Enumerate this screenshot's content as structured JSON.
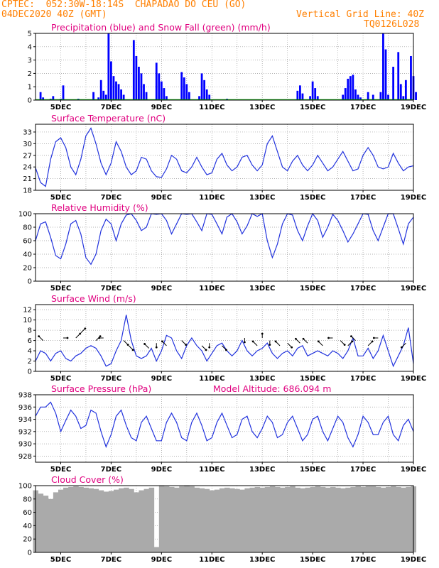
{
  "header": {
    "station": "CPTEC:  052:30W-18:14S  CHAPADAO DO CEU (GO)",
    "date": "04DEC2020 40Z (GMT)",
    "grid_note": "Vertical Grid Line: 40Z",
    "code": "TQ0126L028"
  },
  "colors": {
    "header": "#ff7f00",
    "title": "#e0007f",
    "precip": "#0000ff",
    "snow": "#00aa00",
    "line": "#2233dd",
    "cloud": "#aaaaaa",
    "grid": "#999999"
  },
  "x_day_labels": [
    "5DEC",
    "7DEC",
    "9DEC",
    "11DEC",
    "13DEC",
    "15DEC",
    "17DEC",
    "19DEC"
  ],
  "chart_data": [
    {
      "id": "precip",
      "type": "bar",
      "title": "Precipitation (blue) and Snow Fall (green) (mm/h)",
      "ylim": [
        0,
        5
      ],
      "yticks": [
        0,
        1,
        2,
        3,
        4,
        5
      ],
      "series": [
        {
          "name": "Precipitation",
          "color": "#0000ff",
          "points": [
            [
              4.2,
              0.6
            ],
            [
              4.3,
              0.2
            ],
            [
              4.6,
              0.1
            ],
            [
              4.7,
              0.3
            ],
            [
              5.0,
              0.1
            ],
            [
              5.1,
              1.1
            ],
            [
              5.7,
              0.1
            ],
            [
              6.3,
              0.6
            ],
            [
              6.5,
              0.2
            ],
            [
              6.6,
              1.5
            ],
            [
              6.7,
              0.7
            ],
            [
              6.8,
              0.4
            ],
            [
              6.9,
              5.0
            ],
            [
              7.0,
              2.9
            ],
            [
              7.1,
              1.8
            ],
            [
              7.2,
              1.4
            ],
            [
              7.3,
              1.2
            ],
            [
              7.4,
              0.8
            ],
            [
              7.5,
              0.4
            ],
            [
              7.9,
              4.5
            ],
            [
              8.0,
              3.3
            ],
            [
              8.1,
              2.5
            ],
            [
              8.2,
              2.0
            ],
            [
              8.3,
              1.2
            ],
            [
              8.4,
              0.6
            ],
            [
              8.8,
              2.8
            ],
            [
              8.9,
              2.0
            ],
            [
              9.0,
              1.4
            ],
            [
              9.1,
              0.9
            ],
            [
              9.2,
              0.3
            ],
            [
              9.8,
              2.1
            ],
            [
              9.9,
              1.7
            ],
            [
              10.0,
              1.2
            ],
            [
              10.1,
              0.6
            ],
            [
              10.5,
              0.3
            ],
            [
              10.6,
              2.0
            ],
            [
              10.7,
              1.5
            ],
            [
              10.8,
              0.8
            ],
            [
              10.9,
              0.4
            ],
            [
              11.6,
              0.1
            ],
            [
              14.4,
              0.7
            ],
            [
              14.5,
              1.1
            ],
            [
              14.6,
              0.5
            ],
            [
              14.9,
              0.3
            ],
            [
              15.0,
              1.4
            ],
            [
              15.1,
              0.9
            ],
            [
              15.2,
              0.3
            ],
            [
              16.2,
              0.4
            ],
            [
              16.3,
              0.9
            ],
            [
              16.4,
              1.6
            ],
            [
              16.5,
              1.8
            ],
            [
              16.6,
              1.9
            ],
            [
              16.7,
              0.8
            ],
            [
              16.8,
              0.4
            ],
            [
              16.9,
              0.2
            ],
            [
              17.2,
              0.6
            ],
            [
              17.4,
              0.4
            ],
            [
              17.7,
              0.6
            ],
            [
              17.8,
              5.0
            ],
            [
              17.9,
              3.8
            ],
            [
              18.0,
              0.4
            ],
            [
              18.2,
              2.5
            ],
            [
              18.4,
              3.6
            ],
            [
              18.5,
              1.2
            ],
            [
              18.6,
              0.3
            ],
            [
              18.7,
              1.5
            ],
            [
              18.9,
              3.3
            ],
            [
              19.0,
              1.8
            ],
            [
              19.1,
              0.6
            ]
          ]
        },
        {
          "name": "Snow Fall",
          "color": "#00aa00",
          "points": []
        }
      ]
    },
    {
      "id": "temp",
      "type": "line",
      "title": "Surface Temperature (nC)",
      "ylim": [
        18,
        35
      ],
      "yticks": [
        18,
        21,
        24,
        27,
        30,
        33
      ],
      "x": [
        4.0,
        4.2,
        4.4,
        4.6,
        4.8,
        5.0,
        5.2,
        5.4,
        5.6,
        5.8,
        6.0,
        6.2,
        6.4,
        6.6,
        6.8,
        7.0,
        7.2,
        7.4,
        7.6,
        7.8,
        8.0,
        8.2,
        8.4,
        8.6,
        8.8,
        9.0,
        9.2,
        9.4,
        9.6,
        9.8,
        10.0,
        10.2,
        10.4,
        10.6,
        10.8,
        11.0,
        11.2,
        11.4,
        11.6,
        11.8,
        12.0,
        12.2,
        12.4,
        12.6,
        12.8,
        13.0,
        13.2,
        13.4,
        13.6,
        13.8,
        14.0,
        14.2,
        14.4,
        14.6,
        14.8,
        15.0,
        15.2,
        15.4,
        15.6,
        15.8,
        16.0,
        16.2,
        16.4,
        16.6,
        16.8,
        17.0,
        17.2,
        17.4,
        17.6,
        17.8,
        18.0,
        18.2,
        18.4,
        18.6,
        18.8,
        19.0
      ],
      "values": [
        23.8,
        20.0,
        19.0,
        26.0,
        30.5,
        31.5,
        29.0,
        24.0,
        22.0,
        26.0,
        32.0,
        34.0,
        30.0,
        25.0,
        22.0,
        25.0,
        30.5,
        28.0,
        24.0,
        22.0,
        23.0,
        26.5,
        26.0,
        23.0,
        21.5,
        21.3,
        23.5,
        27.0,
        26.0,
        23.0,
        22.5,
        24.0,
        26.5,
        24.0,
        22.0,
        22.5,
        26.0,
        27.5,
        24.5,
        23.0,
        24.0,
        26.5,
        27.0,
        24.5,
        23.0,
        24.5,
        30.0,
        32.0,
        28.0,
        24.0,
        23.0,
        25.5,
        27.0,
        24.5,
        23.0,
        24.5,
        27.0,
        25.0,
        23.0,
        24.0,
        26.0,
        28.0,
        25.5,
        23.0,
        23.5,
        27.0,
        29.0,
        27.0,
        24.0,
        23.5,
        24.0,
        27.5,
        25.0,
        23.0,
        24.0,
        24.3
      ]
    },
    {
      "id": "rh",
      "type": "line",
      "title": "Relative Humidity (%)",
      "ylim": [
        0,
        100
      ],
      "yticks": [
        0,
        20,
        40,
        60,
        80,
        100
      ],
      "x": [
        4.0,
        4.2,
        4.4,
        4.6,
        4.8,
        5.0,
        5.2,
        5.4,
        5.6,
        5.8,
        6.0,
        6.2,
        6.4,
        6.6,
        6.8,
        7.0,
        7.2,
        7.4,
        7.6,
        7.8,
        8.0,
        8.2,
        8.4,
        8.6,
        8.8,
        9.0,
        9.2,
        9.4,
        9.6,
        9.8,
        10.0,
        10.2,
        10.4,
        10.6,
        10.8,
        11.0,
        11.2,
        11.4,
        11.6,
        11.8,
        12.0,
        12.2,
        12.4,
        12.6,
        12.8,
        13.0,
        13.2,
        13.4,
        13.6,
        13.8,
        14.0,
        14.2,
        14.4,
        14.6,
        14.8,
        15.0,
        15.2,
        15.4,
        15.6,
        15.8,
        16.0,
        16.2,
        16.4,
        16.6,
        16.8,
        17.0,
        17.2,
        17.4,
        17.6,
        17.8,
        18.0,
        18.2,
        18.4,
        18.6,
        18.8,
        19.0
      ],
      "values": [
        60,
        85,
        88,
        65,
        38,
        33,
        55,
        85,
        90,
        70,
        35,
        25,
        40,
        75,
        92,
        85,
        60,
        85,
        98,
        100,
        90,
        75,
        80,
        100,
        99,
        100,
        90,
        70,
        85,
        100,
        99,
        100,
        88,
        75,
        100,
        99,
        85,
        70,
        95,
        100,
        88,
        70,
        82,
        100,
        96,
        100,
        60,
        35,
        55,
        85,
        100,
        98,
        75,
        60,
        82,
        100,
        90,
        65,
        80,
        99,
        90,
        75,
        58,
        70,
        85,
        100,
        99,
        75,
        60,
        80,
        100,
        100,
        78,
        55,
        85,
        95
      ]
    },
    {
      "id": "wind",
      "type": "line",
      "title": "Surface Wind (m/s)",
      "ylim": [
        0,
        13
      ],
      "yticks": [
        0,
        2,
        4,
        6,
        8,
        10,
        12
      ],
      "x": [
        4.0,
        4.2,
        4.4,
        4.6,
        4.8,
        5.0,
        5.2,
        5.4,
        5.6,
        5.8,
        6.0,
        6.2,
        6.4,
        6.6,
        6.8,
        7.0,
        7.2,
        7.4,
        7.6,
        7.8,
        8.0,
        8.2,
        8.4,
        8.6,
        8.8,
        9.0,
        9.2,
        9.4,
        9.6,
        9.8,
        10.0,
        10.2,
        10.4,
        10.6,
        10.8,
        11.0,
        11.2,
        11.4,
        11.6,
        11.8,
        12.0,
        12.2,
        12.4,
        12.6,
        12.8,
        13.0,
        13.2,
        13.4,
        13.6,
        13.8,
        14.0,
        14.2,
        14.4,
        14.6,
        14.8,
        15.0,
        15.2,
        15.4,
        15.6,
        15.8,
        16.0,
        16.2,
        16.4,
        16.6,
        16.8,
        17.0,
        17.2,
        17.4,
        17.6,
        17.8,
        18.0,
        18.2,
        18.4,
        18.6,
        18.8,
        19.0
      ],
      "values": [
        2.0,
        4.0,
        3.5,
        2.0,
        3.5,
        4.0,
        2.5,
        2.0,
        3.0,
        3.5,
        4.5,
        5.0,
        4.5,
        3.0,
        1.0,
        1.5,
        4.0,
        6.0,
        11.0,
        6.0,
        3.0,
        2.5,
        3.0,
        4.5,
        2.0,
        4.0,
        7.0,
        6.5,
        4.0,
        2.5,
        5.0,
        6.5,
        5.0,
        4.0,
        2.0,
        3.5,
        5.0,
        5.5,
        4.0,
        3.0,
        4.0,
        6.0,
        4.0,
        3.0,
        4.0,
        4.5,
        5.5,
        3.5,
        2.5,
        3.5,
        4.0,
        3.0,
        4.5,
        5.0,
        3.0,
        3.5,
        4.0,
        3.5,
        3.0,
        4.0,
        3.5,
        2.5,
        4.0,
        6.5,
        3.0,
        3.0,
        4.5,
        2.5,
        4.0,
        7.0,
        4.0,
        1.0,
        3.0,
        5.0,
        8.5,
        1.5
      ]
    },
    {
      "id": "pressure",
      "type": "line",
      "title": "Surface Pressure (hPa)",
      "annotation": "Model Altitude: 686.094 m",
      "ylim": [
        927,
        938
      ],
      "yticks": [
        928,
        930,
        932,
        934,
        936,
        938
      ],
      "x": [
        4.0,
        4.2,
        4.4,
        4.6,
        4.8,
        5.0,
        5.2,
        5.4,
        5.6,
        5.8,
        6.0,
        6.2,
        6.4,
        6.6,
        6.8,
        7.0,
        7.2,
        7.4,
        7.6,
        7.8,
        8.0,
        8.2,
        8.4,
        8.6,
        8.8,
        9.0,
        9.2,
        9.4,
        9.6,
        9.8,
        10.0,
        10.2,
        10.4,
        10.6,
        10.8,
        11.0,
        11.2,
        11.4,
        11.6,
        11.8,
        12.0,
        12.2,
        12.4,
        12.6,
        12.8,
        13.0,
        13.2,
        13.4,
        13.6,
        13.8,
        14.0,
        14.2,
        14.4,
        14.6,
        14.8,
        15.0,
        15.2,
        15.4,
        15.6,
        15.8,
        16.0,
        16.2,
        16.4,
        16.6,
        16.8,
        17.0,
        17.2,
        17.4,
        17.6,
        17.8,
        18.0,
        18.2,
        18.4,
        18.6,
        18.8,
        19.0
      ],
      "values": [
        934.5,
        936.0,
        936.0,
        936.8,
        935.0,
        932.0,
        933.8,
        935.5,
        934.5,
        932.5,
        933.0,
        935.5,
        935.0,
        932.0,
        929.5,
        931.5,
        934.5,
        935.5,
        933.0,
        931.0,
        930.5,
        933.5,
        934.5,
        932.5,
        930.5,
        930.5,
        933.5,
        935.0,
        933.5,
        931.0,
        930.5,
        933.5,
        935.0,
        933.0,
        930.5,
        931.0,
        933.5,
        935.0,
        933.0,
        931.0,
        931.5,
        934.0,
        934.5,
        932.0,
        931.0,
        932.5,
        934.5,
        933.5,
        931.0,
        931.5,
        933.5,
        934.5,
        932.5,
        930.5,
        931.5,
        934.0,
        934.5,
        932.0,
        930.5,
        932.5,
        934.5,
        933.5,
        931.0,
        929.5,
        931.5,
        934.5,
        933.5,
        931.5,
        931.5,
        933.5,
        934.5,
        931.5,
        930.5,
        933.0,
        934.0,
        932.0
      ]
    },
    {
      "id": "cloud",
      "type": "bar",
      "title": "Cloud Cover (%)",
      "ylim": [
        0,
        100
      ],
      "yticks": [
        0,
        20,
        40,
        60,
        80,
        100
      ],
      "x": [
        4.0,
        4.2,
        4.4,
        4.6,
        4.8,
        5.0,
        5.2,
        5.4,
        5.6,
        5.8,
        6.0,
        6.2,
        6.4,
        6.6,
        6.8,
        7.0,
        7.2,
        7.4,
        7.6,
        7.8,
        8.0,
        8.2,
        8.4,
        8.6,
        8.8,
        9.0,
        9.2,
        9.4,
        9.6,
        9.8,
        10.0,
        10.2,
        10.4,
        10.6,
        10.8,
        11.0,
        11.2,
        11.4,
        11.6,
        11.8,
        12.0,
        12.2,
        12.4,
        12.6,
        12.8,
        13.0,
        13.2,
        13.4,
        13.6,
        13.8,
        14.0,
        14.2,
        14.4,
        14.6,
        14.8,
        15.0,
        15.2,
        15.4,
        15.6,
        15.8,
        16.0,
        16.2,
        16.4,
        16.6,
        16.8,
        17.0,
        17.2,
        17.4,
        17.6,
        17.8,
        18.0,
        18.2,
        18.4,
        18.6,
        18.8,
        19.0
      ],
      "values": [
        93,
        88,
        85,
        80,
        90,
        94,
        97,
        98,
        99,
        98,
        97,
        96,
        95,
        93,
        91,
        92,
        94,
        96,
        97,
        95,
        90,
        93,
        95,
        97,
        8,
        100,
        99,
        98,
        97,
        99,
        100,
        99,
        97,
        96,
        95,
        93,
        94,
        96,
        97,
        96,
        95,
        94,
        96,
        97,
        98,
        97,
        98,
        99,
        98,
        97,
        98,
        99,
        97,
        96,
        97,
        98,
        99,
        98,
        97,
        98,
        97,
        96,
        97,
        98,
        99,
        98,
        99,
        99,
        98,
        97,
        98,
        99,
        98,
        97,
        98,
        99
      ]
    }
  ]
}
